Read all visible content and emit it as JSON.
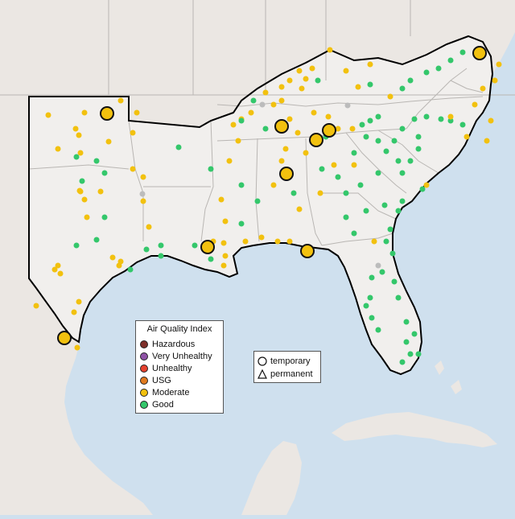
{
  "map": {
    "colors": {
      "water": "#cfe0ee",
      "land": "#ebe7e3",
      "land_dark": "#e0dcd8",
      "region_fill": "#f1efed",
      "border_thin": "#b9b6b3",
      "outline": "#000000"
    }
  },
  "aqi_legend": {
    "title": "Air Quality Index",
    "items": [
      {
        "label": "Hazardous",
        "color": "#7e2f2a"
      },
      {
        "label": "Very Unhealthy",
        "color": "#8f52a6"
      },
      {
        "label": "Unhealthy",
        "color": "#e5412e"
      },
      {
        "label": "USG",
        "color": "#e07b20"
      },
      {
        "label": "Moderate",
        "color": "#f2c10f"
      },
      {
        "label": "Good",
        "color": "#34c76b"
      }
    ]
  },
  "monitor_legend": {
    "items": [
      {
        "label": "temporary",
        "shape": "circle"
      },
      {
        "label": "permanent",
        "shape": "triangle"
      }
    ]
  }
}
